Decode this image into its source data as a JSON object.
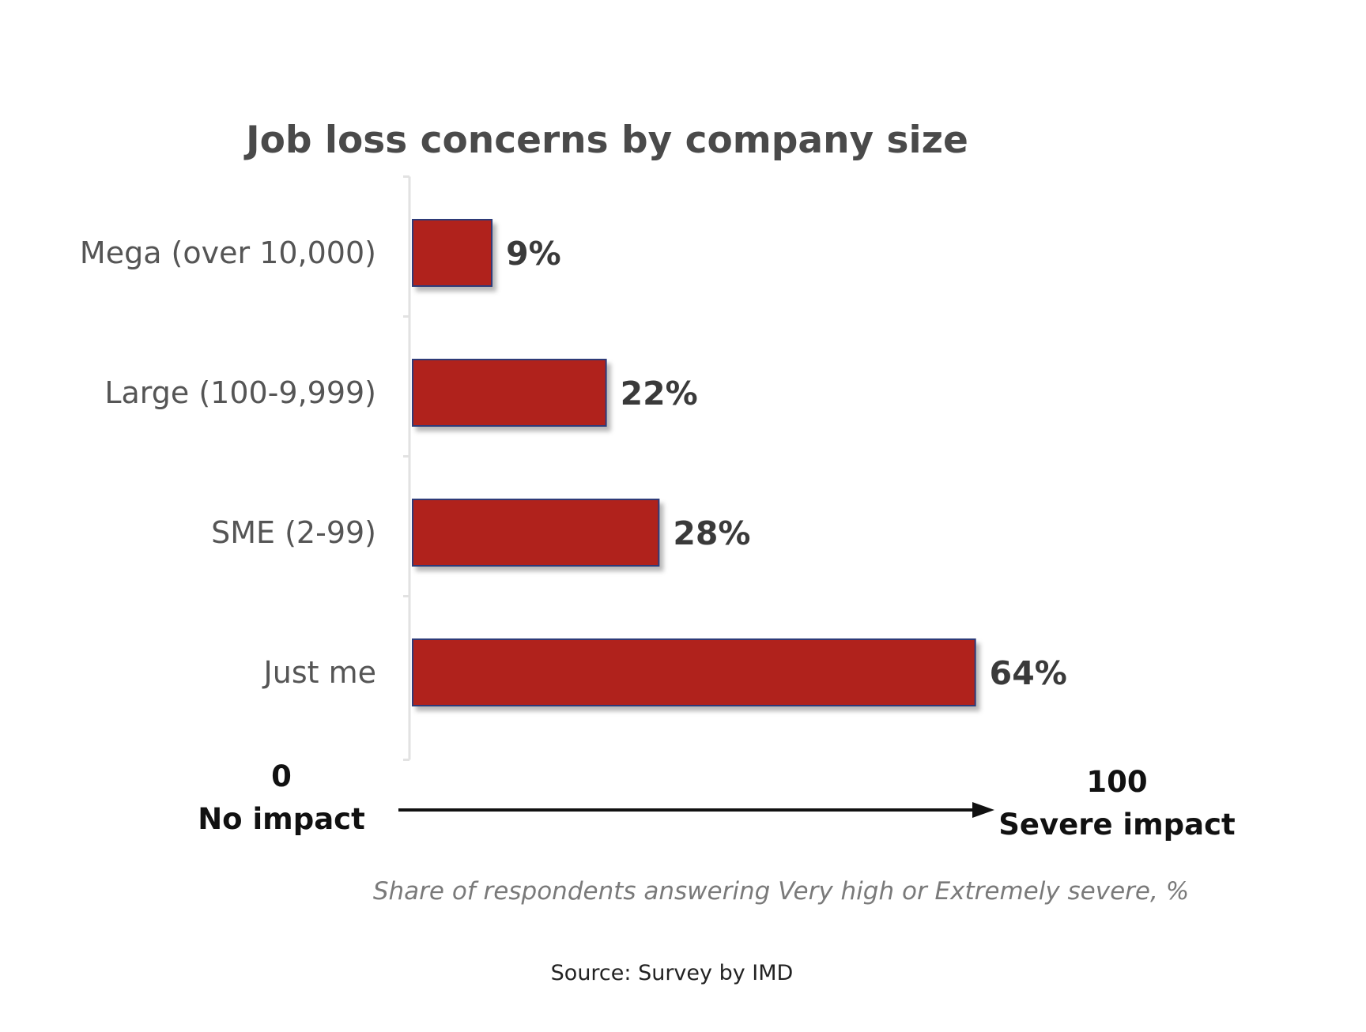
{
  "chart_data": {
    "type": "bar",
    "orientation": "horizontal",
    "title": "Job loss concerns by company size",
    "categories": [
      "Mega (over 10,000)",
      "Large (100-9,999)",
      "SME (2-99)",
      "Just me"
    ],
    "values": [
      9,
      22,
      28,
      64
    ],
    "data_labels": [
      "9%",
      "22%",
      "28%",
      "64%"
    ],
    "xlim": [
      0,
      100
    ],
    "grid": false,
    "legend": "none",
    "scale": {
      "min_value": "0",
      "min_label": "No impact",
      "max_value": "100",
      "max_label": "Severe impact"
    },
    "note": "Share of respondents answering Very high or Extremely severe, %",
    "source": "Source: Survey by IMD"
  },
  "colors": {
    "bar_fill": "#b0221e",
    "bar_border": "#2f3a78",
    "title": "#4a4a4a",
    "category_text": "#555555",
    "data_label_text": "#3a3a3a",
    "scale_text": "#111111",
    "note_text": "#7a7a7a",
    "source_text": "#222222",
    "axis_line": "#e2e2e2",
    "arrow": "#111111"
  }
}
